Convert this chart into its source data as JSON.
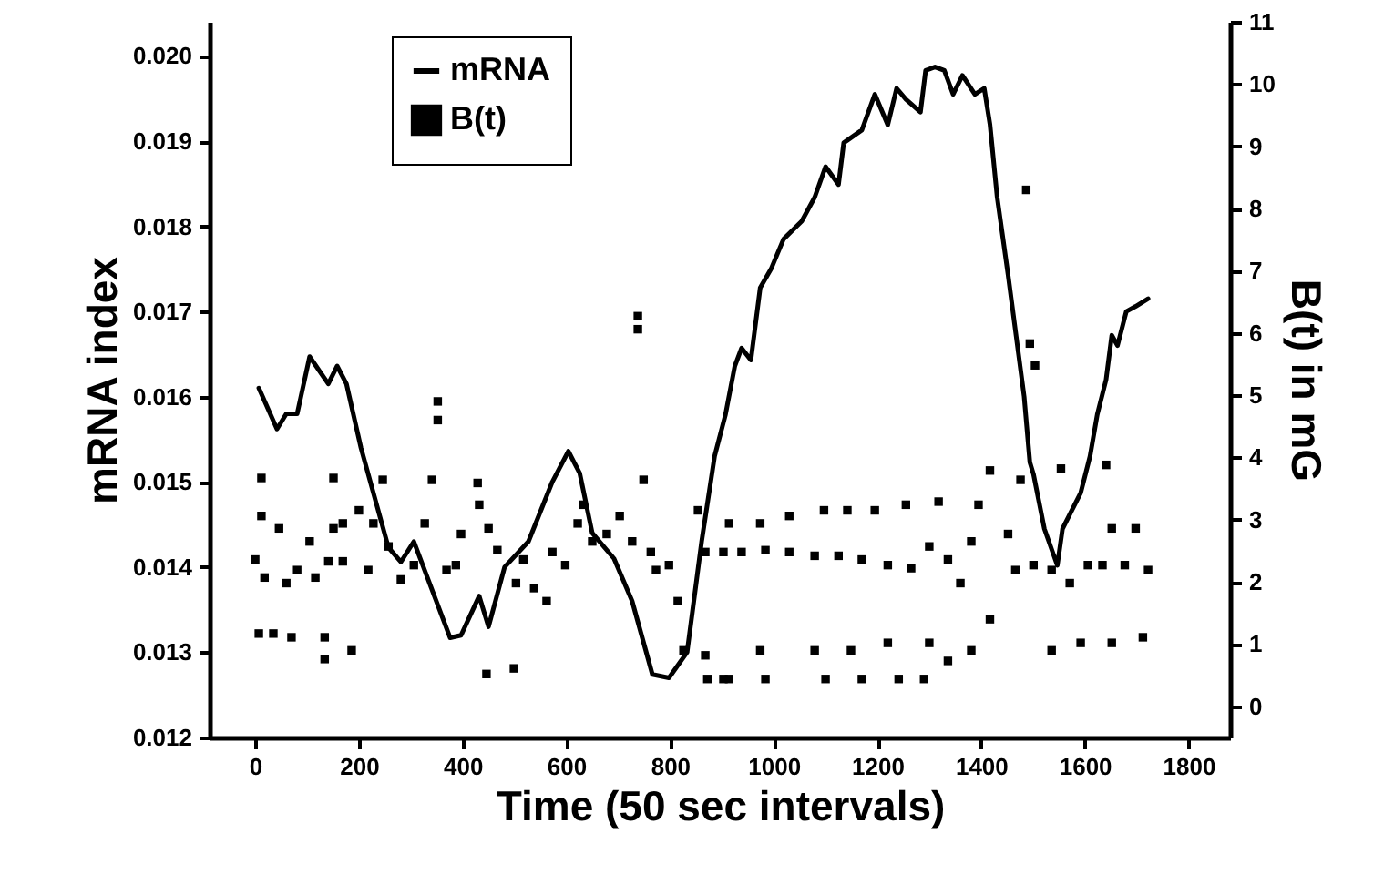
{
  "chart_data": {
    "type": "line",
    "xlabel": "Time (50 sec intervals)",
    "ylabel": "mRNA index",
    "y2label": "B(t) in mG",
    "xlim": [
      -88,
      1880
    ],
    "xticks": [
      0,
      200,
      400,
      600,
      800,
      1000,
      1200,
      1400,
      1600,
      1800
    ],
    "ylim": [
      0.012,
      0.0204
    ],
    "yticks": [
      {
        "value": 0.012,
        "label": "0.012"
      },
      {
        "value": 0.013,
        "label": "0.013"
      },
      {
        "value": 0.014,
        "label": "0.014"
      },
      {
        "value": 0.015,
        "label": "0.015"
      },
      {
        "value": 0.016,
        "label": "0.016"
      },
      {
        "value": 0.017,
        "label": "0.017"
      },
      {
        "value": 0.018,
        "label": "0.018"
      },
      {
        "value": 0.019,
        "label": "0.019"
      },
      {
        "value": 0.02,
        "label": "0.020"
      }
    ],
    "y2lim": [
      -0.5,
      11
    ],
    "y2ticks": [
      0,
      1,
      2,
      3,
      4,
      5,
      6,
      7,
      8,
      9,
      10,
      11
    ],
    "legend": "top left",
    "grid": false,
    "series": [
      {
        "name": "mRNA",
        "color": "#000000",
        "line_style": "solid",
        "x": [
          7,
          42,
          60,
          81,
          105,
          141,
          158,
          176,
          204,
          257,
          281,
          306,
          376,
          397,
          432,
          450,
          481,
          527,
          573,
          604,
          626,
          650,
          692,
          727,
          766,
          798,
          833,
          861,
          886,
          907,
          925,
          938,
          956,
          974,
          995,
          1019,
          1054,
          1079,
          1100,
          1125,
          1135,
          1170,
          1195,
          1220,
          1237,
          1255,
          1283,
          1293,
          1311,
          1329,
          1346,
          1364,
          1388,
          1406,
          1417,
          1431,
          1452,
          1483,
          1494,
          1501,
          1522,
          1547,
          1557,
          1592,
          1610,
          1624,
          1641,
          1652,
          1663,
          1680,
          1698,
          1722
        ],
        "values": [
          0.0161,
          0.01562,
          0.0158,
          0.0158,
          0.01647,
          0.01615,
          0.01636,
          0.01615,
          0.0154,
          0.01423,
          0.01406,
          0.0143,
          0.01317,
          0.0132,
          0.01366,
          0.0133,
          0.014,
          0.0143,
          0.015,
          0.01536,
          0.0151,
          0.0144,
          0.0141,
          0.0136,
          0.01274,
          0.0127,
          0.013,
          0.0143,
          0.0153,
          0.01579,
          0.01636,
          0.01657,
          0.01643,
          0.01728,
          0.0175,
          0.01785,
          0.01806,
          0.01834,
          0.0187,
          0.01849,
          0.01898,
          0.01913,
          0.01955,
          0.01919,
          0.01962,
          0.01949,
          0.01934,
          0.01983,
          0.01987,
          0.01983,
          0.01955,
          0.01977,
          0.01955,
          0.01962,
          0.0192,
          0.01834,
          0.01743,
          0.016,
          0.01523,
          0.01509,
          0.01445,
          0.01402,
          0.01445,
          0.01487,
          0.0153,
          0.01579,
          0.0162,
          0.01672,
          0.0166,
          0.017,
          0.01706,
          0.01715
        ]
      },
      {
        "name": "B(t)",
        "type": "scatter",
        "axis": "y2",
        "color": "#000000",
        "marker": "square",
        "x": [
          0,
          12,
          12,
          18,
          7,
          35,
          70,
          46,
          60,
          81,
          105,
          116,
          134,
          134,
          141,
          151,
          151,
          169,
          169,
          186,
          200,
          218,
          228,
          246,
          257,
          281,
          306,
          327,
          341,
          352,
          352,
          369,
          387,
          397,
          429,
          432,
          446,
          450,
          467,
          499,
          503,
          517,
          538,
          562,
          573,
          598,
          622,
          633,
          650,
          678,
          703,
          727,
          738,
          738,
          749,
          763,
          773,
          798,
          815,
          826,
          868,
          872,
          903,
          854,
          914,
          974,
          1030,
          1097,
          1142,
          1195,
          1255,
          1318,
          1395,
          1417,
          1476,
          1554,
          1641,
          1652,
          1698,
          868,
          903,
          938,
          984,
          1030,
          1079,
          1125,
          1170,
          1220,
          1265,
          1300,
          1336,
          1360,
          1381,
          1417,
          1452,
          1466,
          1501,
          1536,
          1571,
          1606,
          1634,
          1677,
          1722,
          914,
          974,
          984,
          1079,
          1100,
          1149,
          1170,
          1220,
          1241,
          1290,
          1300,
          1336,
          1381,
          1487,
          1494,
          1504,
          1536,
          1592,
          1652,
          1712
        ],
        "values": [
          2.36,
          3.67,
          3.06,
          2.07,
          1.17,
          1.17,
          1.11,
          2.86,
          1.98,
          2.19,
          2.65,
          2.07,
          1.11,
          0.76,
          2.33,
          2.86,
          3.67,
          2.33,
          2.94,
          0.9,
          3.15,
          2.19,
          2.94,
          3.64,
          2.57,
          2.04,
          2.27,
          2.94,
          3.64,
          4.6,
          4.9,
          2.19,
          2.27,
          2.77,
          3.59,
          3.24,
          0.52,
          2.86,
          2.51,
          0.61,
          1.98,
          2.36,
          1.9,
          1.69,
          2.48,
          2.27,
          2.94,
          3.24,
          2.65,
          2.77,
          3.06,
          2.65,
          6.27,
          6.06,
          3.64,
          2.48,
          2.19,
          2.27,
          1.69,
          0.9,
          0.82,
          0.44,
          0.44,
          3.15,
          2.94,
          2.94,
          3.06,
          3.15,
          3.15,
          3.15,
          3.24,
          3.29,
          3.24,
          3.79,
          3.64,
          3.82,
          3.88,
          2.86,
          2.86,
          2.48,
          2.48,
          2.48,
          2.51,
          2.48,
          2.42,
          2.42,
          2.36,
          2.27,
          2.22,
          2.57,
          2.36,
          1.98,
          2.65,
          1.4,
          2.77,
          2.19,
          2.27,
          2.19,
          1.98,
          2.27,
          2.27,
          2.27,
          2.19,
          0.44,
          0.9,
          0.44,
          0.9,
          0.44,
          0.9,
          0.44,
          1.02,
          0.44,
          0.44,
          1.02,
          0.73,
          0.9,
          8.3,
          5.83,
          5.48,
          0.9,
          1.02,
          1.02,
          1.11
        ]
      }
    ]
  }
}
